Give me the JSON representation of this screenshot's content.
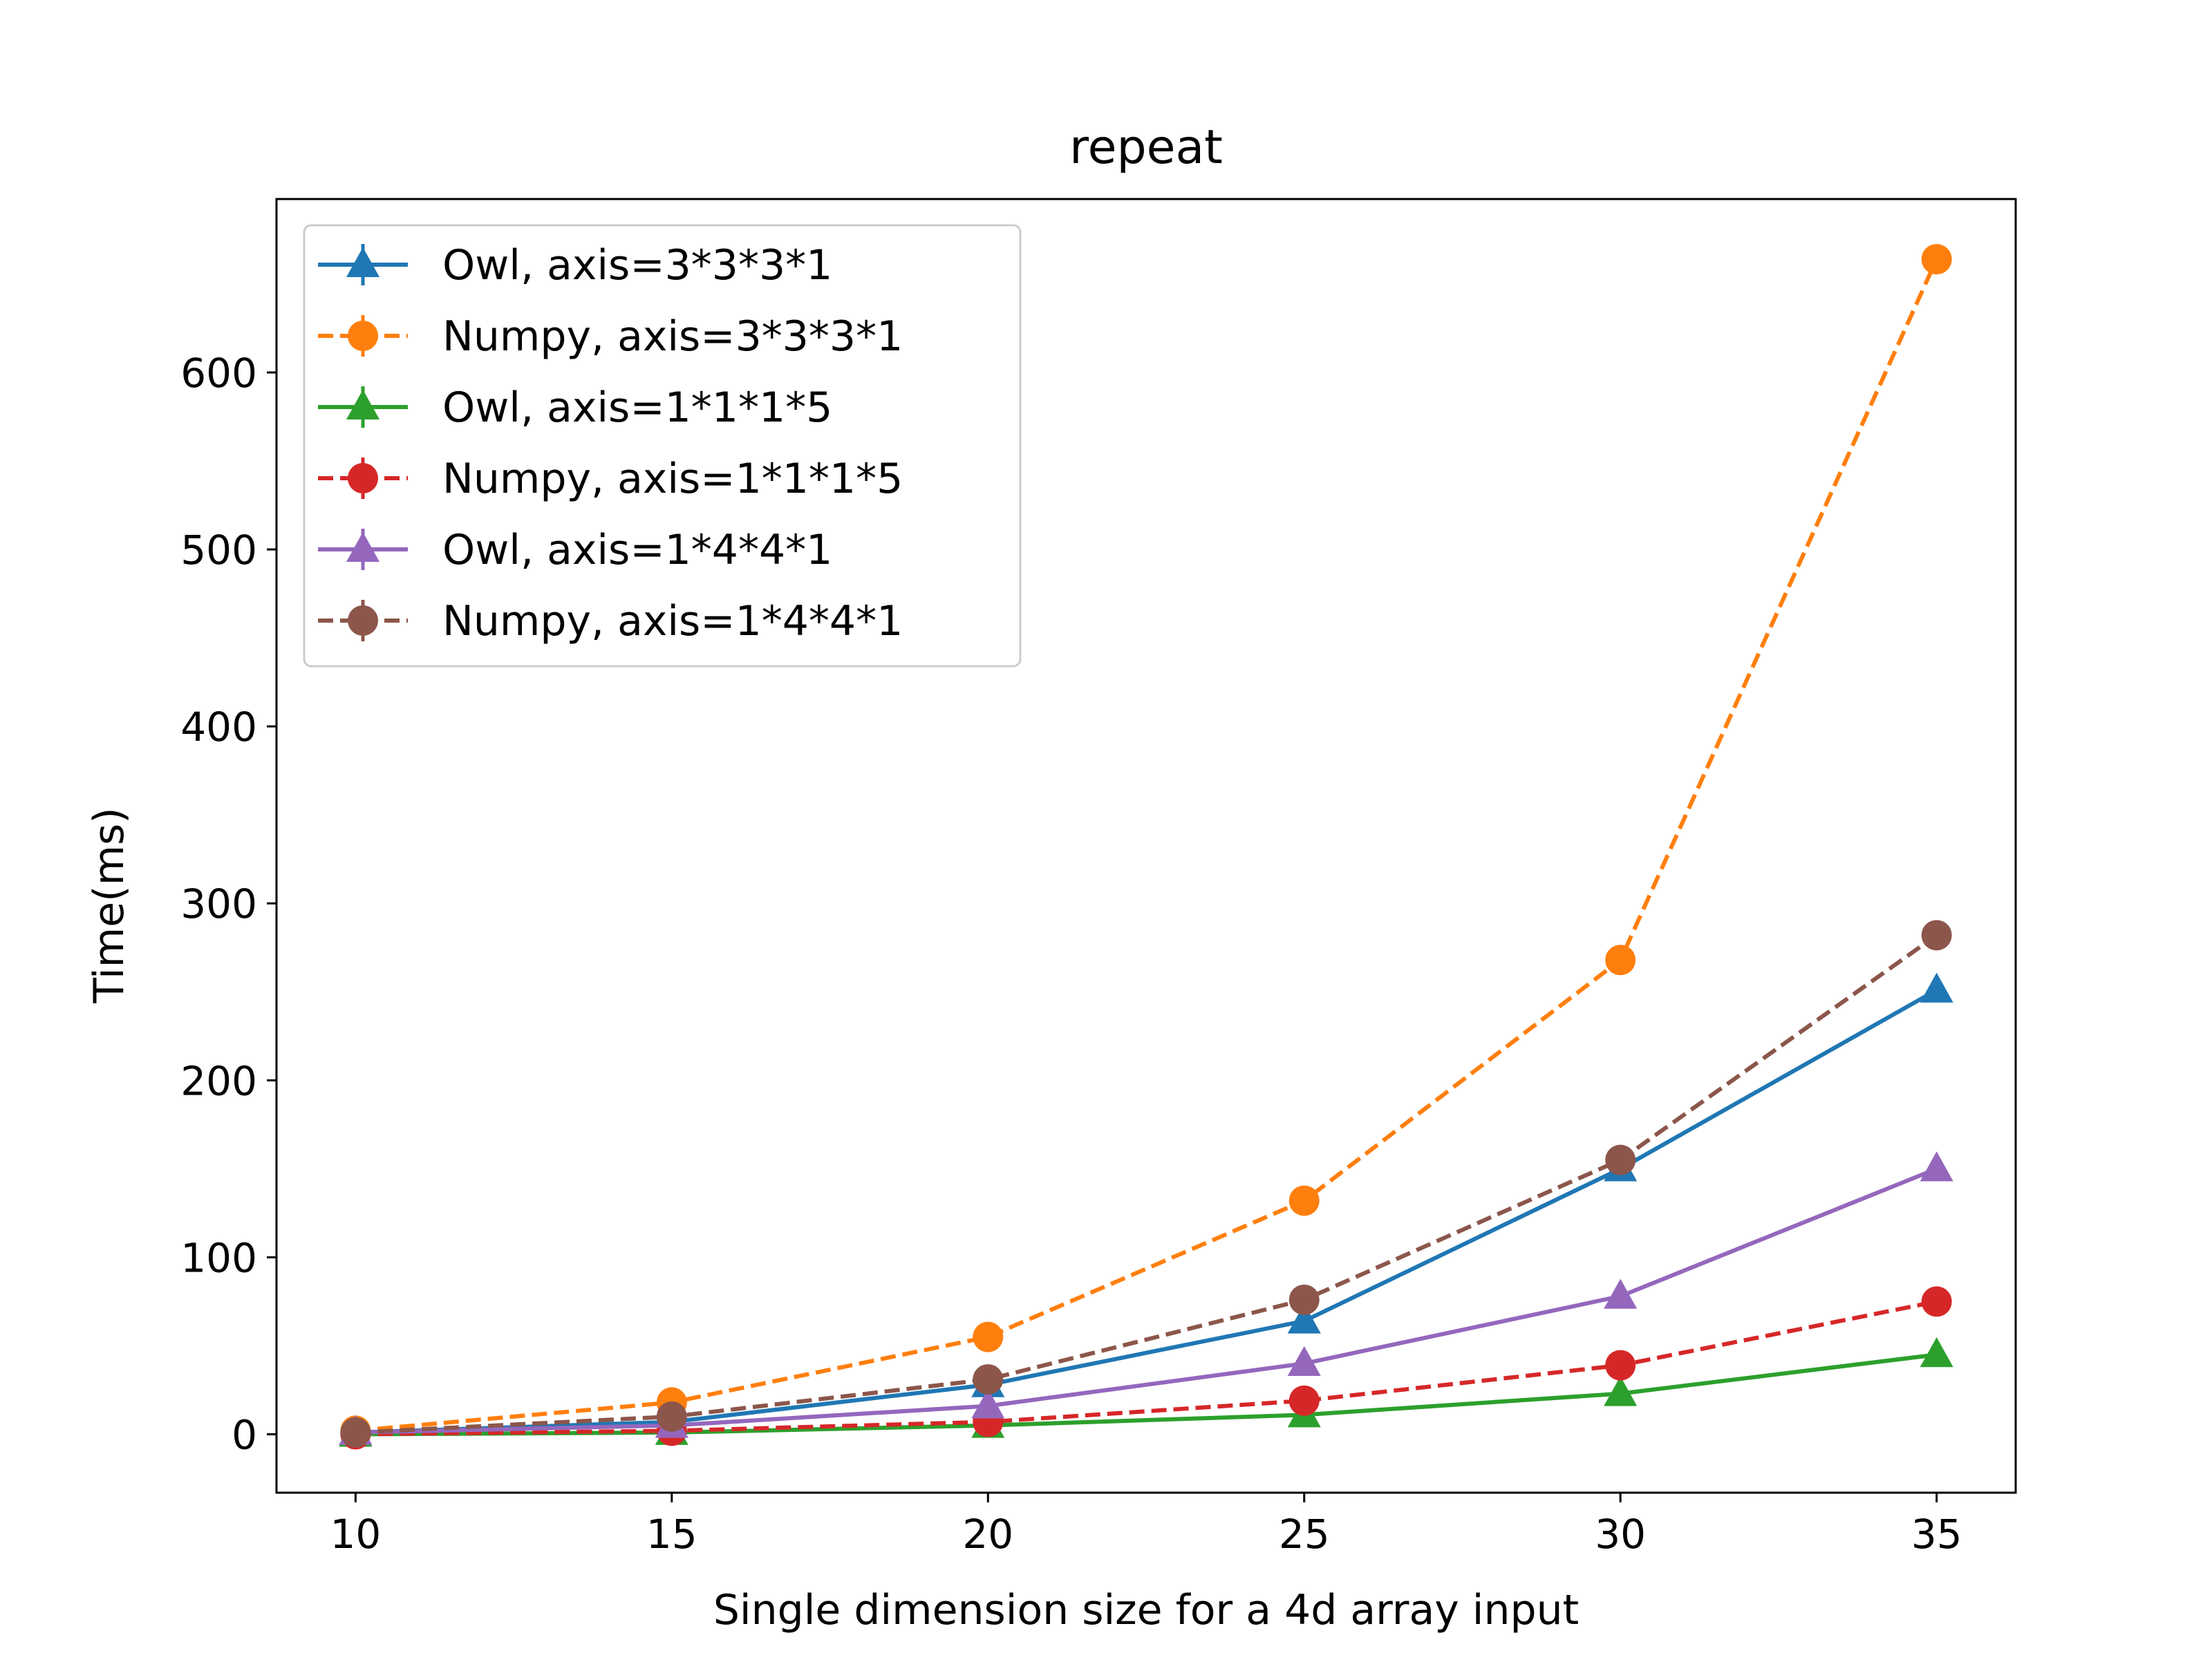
{
  "chart_data": {
    "type": "line",
    "title": "repeat",
    "xlabel": "Single dimension size for a 4d array input",
    "ylabel": "Time(ms)",
    "x": [
      10,
      15,
      20,
      25,
      30,
      35
    ],
    "xlim": [
      8.75,
      36.25
    ],
    "ylim": [
      -33,
      698
    ],
    "xticks": [
      10,
      15,
      20,
      25,
      30,
      35
    ],
    "yticks": [
      0,
      100,
      200,
      300,
      400,
      500,
      600
    ],
    "grid": false,
    "legend_position": "top-left",
    "series": [
      {
        "name": "Owl, axis=3*3*3*1",
        "color": "#1f77b4",
        "marker": "triangle",
        "dashed": false,
        "values": [
          1,
          7,
          28,
          64,
          150,
          251
        ]
      },
      {
        "name": "Numpy, axis=3*3*3*1",
        "color": "#ff7f0e",
        "marker": "circle",
        "dashed": true,
        "values": [
          2,
          18,
          55,
          132,
          268,
          664
        ]
      },
      {
        "name": "Owl, axis=1*1*1*5",
        "color": "#2ca02c",
        "marker": "triangle",
        "dashed": false,
        "values": [
          0,
          1,
          5,
          11,
          23,
          45
        ]
      },
      {
        "name": "Numpy, axis=1*1*1*5",
        "color": "#d62728",
        "marker": "circle",
        "dashed": true,
        "values": [
          0,
          2,
          7,
          19,
          39,
          75
        ]
      },
      {
        "name": "Owl, axis=1*4*4*1",
        "color": "#9467bd",
        "marker": "triangle",
        "dashed": false,
        "values": [
          1,
          5,
          16,
          40,
          78,
          150
        ]
      },
      {
        "name": "Numpy, axis=1*4*4*1",
        "color": "#8c564b",
        "marker": "circle",
        "dashed": true,
        "values": [
          1,
          10,
          31,
          76,
          155,
          282
        ]
      }
    ]
  }
}
